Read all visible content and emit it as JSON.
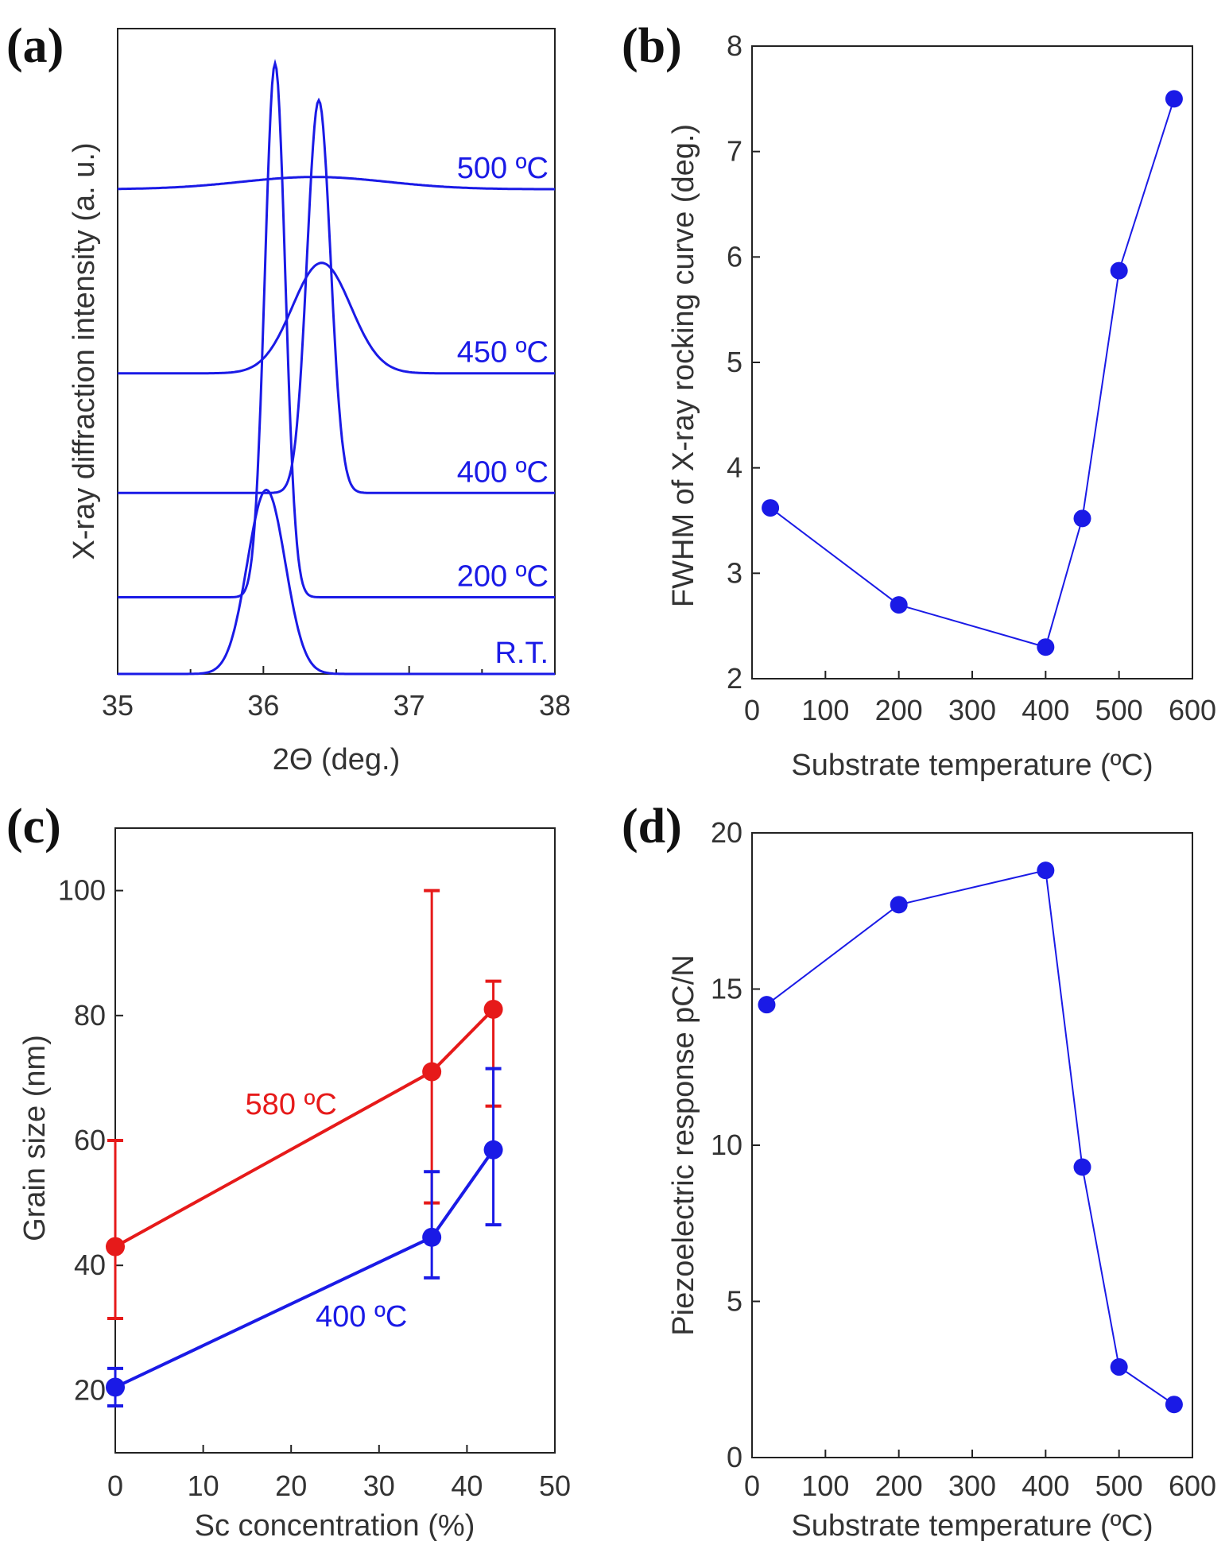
{
  "colors": {
    "blue": "#1a1ae6",
    "red": "#e61a1a",
    "axis": "#222222"
  },
  "panels": [
    {
      "id": "a",
      "label": "(a)",
      "chart_data": {
        "type": "line",
        "xlabel": "2Θ (deg.)",
        "ylabel": "X-ray diffraction intensity (a. u.)",
        "xlim": [
          35,
          38
        ],
        "xticks": [
          "35",
          "36",
          "37",
          "38"
        ],
        "yticks": [],
        "series": [
          {
            "name": "R.T.",
            "baseline": 0.0,
            "peak_center": 36.02,
            "peak_height": 0.3,
            "peak_width": 0.13
          },
          {
            "name": "200 ºC",
            "baseline": 0.125,
            "peak_center": 36.08,
            "peak_height": 0.87,
            "peak_width": 0.07
          },
          {
            "name": "400 ºC",
            "baseline": 0.295,
            "peak_center": 36.38,
            "peak_height": 0.64,
            "peak_width": 0.08
          },
          {
            "name": "450 ºC",
            "baseline": 0.49,
            "peak_center": 36.4,
            "peak_height": 0.18,
            "peak_width": 0.2
          },
          {
            "name": "500 ºC",
            "baseline": 0.79,
            "peak_center": 36.35,
            "peak_height": 0.02,
            "peak_width": 0.5
          }
        ]
      }
    },
    {
      "id": "b",
      "label": "(b)",
      "chart_data": {
        "type": "line",
        "xlabel": "Substrate temperature (ºC)",
        "ylabel": "FWHM of X-ray rocking curve (deg.)",
        "xlim": [
          0,
          600
        ],
        "ylim": [
          2,
          8
        ],
        "xticks": [
          "0",
          "100",
          "200",
          "300",
          "400",
          "500",
          "600"
        ],
        "yticks": [
          "2",
          "3",
          "4",
          "5",
          "6",
          "7",
          "8"
        ],
        "series": [
          {
            "x": [
              25,
              200,
              400,
              450,
              500,
              575
            ],
            "y": [
              3.62,
              2.7,
              2.3,
              3.52,
              5.87,
              7.5
            ]
          }
        ]
      }
    },
    {
      "id": "c",
      "label": "(c)",
      "chart_data": {
        "type": "line",
        "xlabel": "Sc concentration (%)",
        "ylabel": "Grain size (nm)",
        "xlim": [
          0,
          50
        ],
        "ylim": [
          10,
          110
        ],
        "xticks": [
          "0",
          "10",
          "20",
          "30",
          "40",
          "50"
        ],
        "yticks": [
          "20",
          "40",
          "60",
          "80",
          "100"
        ],
        "series": [
          {
            "name": "580 ºC",
            "color": "red",
            "x": [
              0,
              36,
              43
            ],
            "y": [
              43,
              71,
              81
            ],
            "err_low": [
              31.5,
              50,
              65.5
            ],
            "err_high": [
              60,
              100,
              85.5
            ]
          },
          {
            "name": "400 ºC",
            "color": "blue",
            "x": [
              0,
              36,
              43
            ],
            "y": [
              20.5,
              44.5,
              58.5
            ],
            "err_low": [
              17.5,
              38,
              46.5
            ],
            "err_high": [
              23.5,
              55,
              71.5
            ]
          }
        ]
      }
    },
    {
      "id": "d",
      "label": "(d)",
      "chart_data": {
        "type": "line",
        "xlabel": "Substrate temperature (ºC)",
        "ylabel": "Piezoelectric response pC/N",
        "xlim": [
          0,
          600
        ],
        "ylim": [
          0,
          20
        ],
        "xticks": [
          "0",
          "100",
          "200",
          "300",
          "400",
          "500",
          "600"
        ],
        "yticks": [
          "0",
          "5",
          "10",
          "15",
          "20"
        ],
        "series": [
          {
            "x": [
              20,
              200,
              400,
              450,
              500,
              575
            ],
            "y": [
              14.5,
              17.7,
              18.8,
              9.3,
              2.9,
              1.7
            ]
          }
        ]
      }
    }
  ]
}
